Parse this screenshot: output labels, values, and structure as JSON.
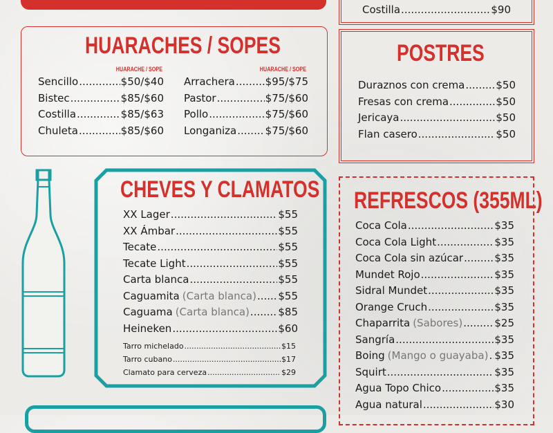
{
  "top_right": {
    "items": [
      {
        "name": "Costilla",
        "price": "$90"
      }
    ]
  },
  "huaraches": {
    "title": "HUARACHES / SOPES",
    "column_label": "HUARACHE / SOPE",
    "left": [
      {
        "name": "Sencillo",
        "price": "$50/$40"
      },
      {
        "name": "Bistec",
        "price": "$85/$60"
      },
      {
        "name": "Costilla",
        "price": "$85/$63"
      },
      {
        "name": "Chuleta",
        "price": "$85/$60"
      }
    ],
    "right": [
      {
        "name": "Arrachera",
        "price": "$95/$75"
      },
      {
        "name": "Pastor",
        "price": "$75/$60"
      },
      {
        "name": "Pollo",
        "price": "$75/$60"
      },
      {
        "name": "Longaniza",
        "price": "$75/$60"
      }
    ]
  },
  "postres": {
    "title": "POSTRES",
    "items": [
      {
        "name": "Duraznos con crema",
        "price": "$50"
      },
      {
        "name": "Fresas con crema",
        "price": "$50"
      },
      {
        "name": "Jericaya",
        "price": "$50"
      },
      {
        "name": "Flan casero",
        "price": "$50"
      }
    ]
  },
  "cheves": {
    "title": "CHEVES Y CLAMATOS",
    "items": [
      {
        "name": "XX Lager",
        "note": "",
        "price": "$55"
      },
      {
        "name": "XX Ámbar",
        "note": "",
        "price": "$55"
      },
      {
        "name": "Tecate",
        "note": "",
        "price": "$55"
      },
      {
        "name": "Tecate Light",
        "note": "",
        "price": "$55"
      },
      {
        "name": "Carta blanca",
        "note": "",
        "price": "$55"
      },
      {
        "name": "Caguamita",
        "note": "(Carta blanca)",
        "price": "$55"
      },
      {
        "name": "Caguama",
        "note": "(Carta blanca)",
        "price": "$85"
      },
      {
        "name": "Heineken",
        "note": "",
        "price": "$60"
      }
    ],
    "extras": [
      {
        "name": "Tarro michelado",
        "price": "$15"
      },
      {
        "name": "Tarro cubano",
        "price": "$17"
      },
      {
        "name": "Clamato para cerveza",
        "price": "$29"
      }
    ]
  },
  "refrescos": {
    "title": "REFRESCOS (355ML)",
    "items": [
      {
        "name": "Coca Cola",
        "note": "",
        "price": "$35"
      },
      {
        "name": "Coca Cola Light",
        "note": "",
        "price": "$35"
      },
      {
        "name": "Coca Cola sin azúcar",
        "note": "",
        "price": "$35"
      },
      {
        "name": "Mundet Rojo",
        "note": "",
        "price": "$35"
      },
      {
        "name": "Sidral Mundet",
        "note": "",
        "price": "$35"
      },
      {
        "name": "Orange Cruch",
        "note": "",
        "price": "$35"
      },
      {
        "name": "Chaparrita",
        "note": "(Sabores)",
        "price": "$25"
      },
      {
        "name": "Sangría",
        "note": "",
        "price": "$35"
      },
      {
        "name": "Boing",
        "note": "(Mango o guayaba)",
        "price": "$35"
      },
      {
        "name": "Squirt",
        "note": "",
        "price": "$35"
      },
      {
        "name": "Agua Topo Chico",
        "note": "",
        "price": "$35"
      },
      {
        "name": "Agua natural",
        "note": "",
        "price": "$30"
      }
    ]
  },
  "colors": {
    "red": "#d4302c",
    "teal": "#1a9fa3"
  }
}
